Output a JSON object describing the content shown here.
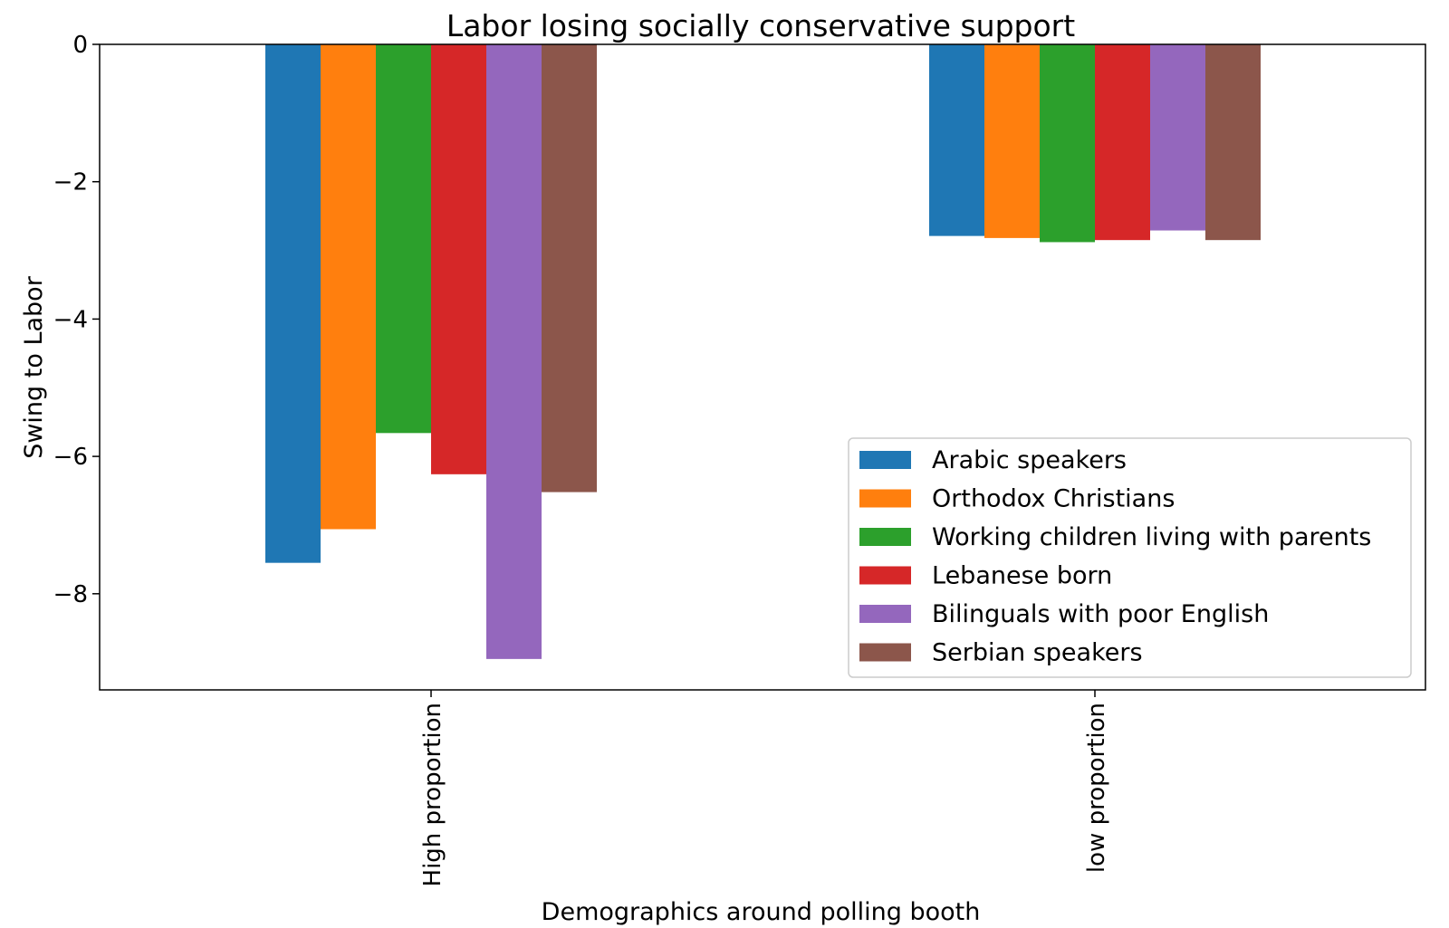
{
  "chart_data": {
    "type": "bar",
    "title": "Labor losing socially conservative support",
    "xlabel": "Demographics around polling booth",
    "ylabel": "Swing to Labor",
    "categories": [
      "High proportion",
      "low proportion"
    ],
    "ylim": [
      -9.4,
      0
    ],
    "yticks": [
      0,
      -2,
      -4,
      -6,
      -8
    ],
    "ytick_labels": [
      "0",
      "−2",
      "−4",
      "−6",
      "−8"
    ],
    "grid": false,
    "legend_position": "lower-right",
    "series": [
      {
        "name": "Arabic speakers",
        "color": "#1f77b4",
        "values": [
          -7.55,
          -2.79
        ]
      },
      {
        "name": "Orthodox Christians",
        "color": "#ff7f0e",
        "values": [
          -7.06,
          -2.82
        ]
      },
      {
        "name": "Working children living with parents",
        "color": "#2ca02c",
        "values": [
          -5.66,
          -2.88
        ]
      },
      {
        "name": "Lebanese born",
        "color": "#d62728",
        "values": [
          -6.26,
          -2.85
        ]
      },
      {
        "name": "Bilinguals with poor English",
        "color": "#9467bd",
        "values": [
          -8.95,
          -2.71
        ]
      },
      {
        "name": "Serbian speakers",
        "color": "#8c564b",
        "values": [
          -6.52,
          -2.85
        ]
      }
    ]
  }
}
